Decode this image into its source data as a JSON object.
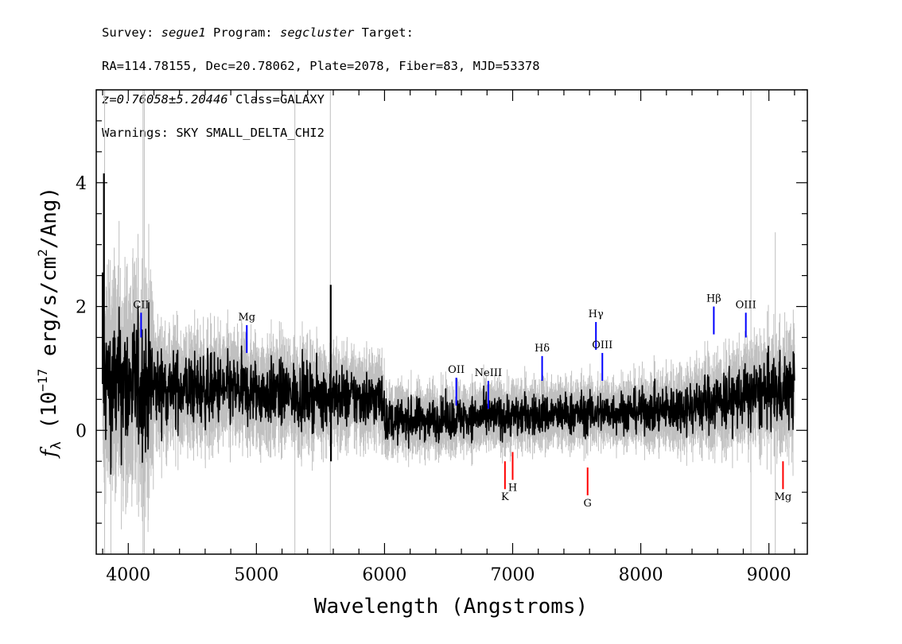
{
  "header": {
    "line1": {
      "survey_label": "Survey: ",
      "survey": "segue1",
      "program_label": " Program: ",
      "program": "segcluster",
      "target_label": " Target:"
    },
    "line2": "RA=114.78155, Dec=20.78062, Plate=2078, Fiber=83, MJD=53378",
    "line3": {
      "z": "z=0.76058±5.20446",
      "class": " Class=GALAXY"
    },
    "line4": "Warnings: SKY SMALL_DELTA_CHI2"
  },
  "colors": {
    "flux": "#000000",
    "error": "#c0c0c0",
    "emission": "#0000ff",
    "absorption": "#ff0000"
  },
  "chart_data": {
    "type": "line",
    "title": "",
    "xlabel": "Wavelength (Angstroms)",
    "ylabel": "fλ (10^-17 erg/s/cm^2/Ang)",
    "ylabel_parts": {
      "f": "f",
      "sub": "λ",
      "mid": " (10",
      "exp1": "−17",
      "mid2": " erg/s/cm",
      "exp2": "2",
      "end": "/Ang)"
    },
    "xlim": [
      3750,
      9300
    ],
    "ylim": [
      -2.0,
      5.5
    ],
    "x_ticks": [
      4000,
      5000,
      6000,
      7000,
      8000,
      9000
    ],
    "x_tick_labels": [
      "4000",
      "5000",
      "6000",
      "7000",
      "8000",
      "9000"
    ],
    "y_ticks": [
      0,
      2,
      4
    ],
    "y_tick_labels": [
      "0",
      "2",
      "4"
    ],
    "grid": false,
    "legend": "none",
    "series": [
      {
        "role": "flux",
        "wavelength_range": [
          3800,
          9200
        ]
      },
      {
        "role": "error",
        "wavelength_range": [
          3800,
          9200
        ]
      }
    ],
    "emission_lines": [
      {
        "label": "CII",
        "wavelength": 4100,
        "y_top": 1.9,
        "y_bottom": 1.5
      },
      {
        "label": "Mg",
        "wavelength": 4925,
        "y_top": 1.7,
        "y_bottom": 1.25
      },
      {
        "label": "OII",
        "wavelength": 6560,
        "y_top": 0.85,
        "y_bottom": 0.4
      },
      {
        "label": "NeIII",
        "wavelength": 6810,
        "y_top": 0.8,
        "y_bottom": 0.35
      },
      {
        "label": "Hδ",
        "wavelength": 7230,
        "y_top": 1.2,
        "y_bottom": 0.8
      },
      {
        "label": "Hγ",
        "wavelength": 7650,
        "y_top": 1.75,
        "y_bottom": 1.3
      },
      {
        "label": "OIII",
        "wavelength": 7700,
        "y_top": 1.25,
        "y_bottom": 0.8
      },
      {
        "label": "Hβ",
        "wavelength": 8570,
        "y_top": 2.0,
        "y_bottom": 1.55
      },
      {
        "label": "OIII",
        "wavelength": 8820,
        "y_top": 1.9,
        "y_bottom": 1.5
      }
    ],
    "absorption_lines": [
      {
        "label": "K",
        "wavelength": 6940,
        "y_top": -0.5,
        "y_bottom": -0.95
      },
      {
        "label": "H",
        "wavelength": 7000,
        "y_top": -0.35,
        "y_bottom": -0.8
      },
      {
        "label": "G",
        "wavelength": 7585,
        "y_top": -0.6,
        "y_bottom": -1.05
      },
      {
        "label": "Mg",
        "wavelength": 9110,
        "y_top": -0.5,
        "y_bottom": -0.95
      }
    ]
  }
}
